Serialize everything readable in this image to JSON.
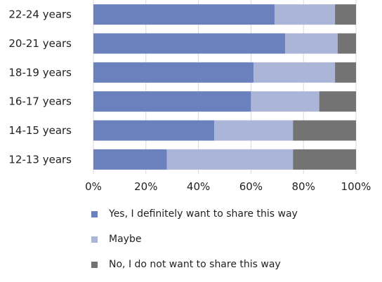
{
  "chart_data": {
    "type": "bar",
    "orientation": "horizontal",
    "stacked": true,
    "categories": [
      "22-24 years",
      "20-21 years",
      "18-19 years",
      "16-17 years",
      "14-15 years",
      "12-13 years"
    ],
    "series": [
      {
        "name": "Yes, I definitely want to share this way",
        "color": "#6a81be",
        "values": [
          69,
          73,
          61,
          60,
          46,
          28
        ]
      },
      {
        "name": "Maybe",
        "color": "#abb5d8",
        "values": [
          23,
          20,
          31,
          26,
          30,
          48
        ]
      },
      {
        "name": "No, I do not want to share this way",
        "color": "#737373",
        "values": [
          8,
          7,
          8,
          14,
          24,
          24
        ]
      }
    ],
    "xticks": [
      "0%",
      "20%",
      "40%",
      "60%",
      "80%",
      "100%"
    ],
    "xlim": [
      0,
      100
    ],
    "grid": true,
    "legend_position": "bottom"
  }
}
